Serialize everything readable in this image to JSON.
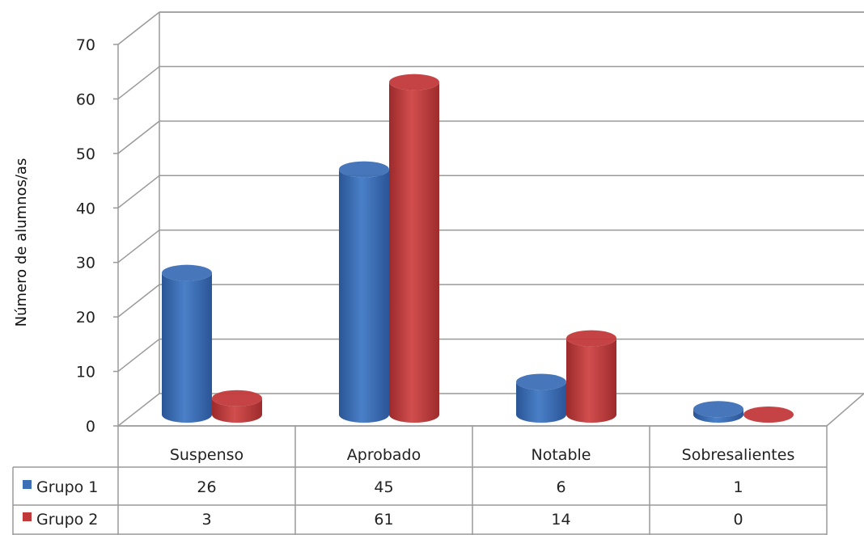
{
  "chart_data": {
    "type": "bar",
    "title": "",
    "xlabel": "",
    "ylabel": "Número de alumnos/as",
    "ylim": [
      0,
      70
    ],
    "yticks": [
      0,
      10,
      20,
      30,
      40,
      50,
      60,
      70
    ],
    "grid": true,
    "legend": "data-table",
    "categories": [
      "Suspenso",
      "Aprobado",
      "Notable",
      "Sobresalientes"
    ],
    "series": [
      {
        "name": "Grupo 1",
        "values": [
          26,
          45,
          6,
          1
        ],
        "color": "#3D6FB6"
      },
      {
        "name": "Grupo 2",
        "values": [
          3,
          61,
          14,
          0
        ],
        "color": "#C2393A"
      }
    ]
  }
}
